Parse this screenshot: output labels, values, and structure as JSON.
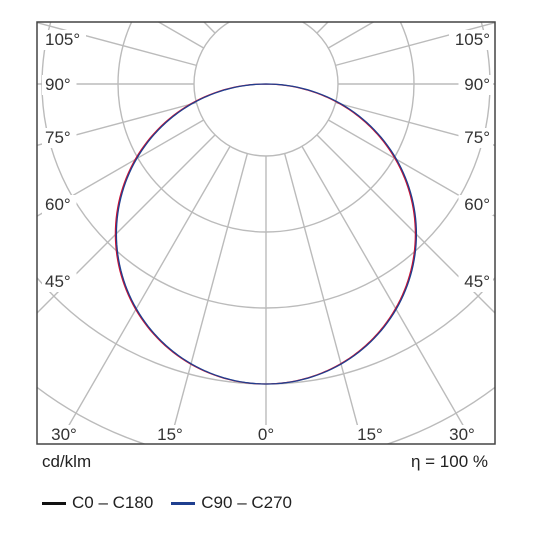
{
  "chart_data": {
    "type": "polar",
    "units_label": "cd/klm",
    "efficiency_label": "η = 100 %",
    "angle_labels_left": [
      "105°",
      "90°",
      "75°",
      "60°",
      "45°"
    ],
    "angle_labels_right": [
      "105°",
      "90°",
      "75°",
      "60°",
      "45°"
    ],
    "bottom_labels": [
      "30°",
      "15°",
      "0°",
      "15°",
      "30°"
    ],
    "label_angles": [
      105,
      90,
      75,
      60,
      45
    ],
    "bottom_label_angles": [
      30,
      15,
      0,
      15,
      30
    ],
    "radial_tick_step_deg": 5,
    "series": [
      {
        "name": "C0 – C180",
        "color": "#cc1133",
        "shape": "lambertian",
        "peak": 1.0,
        "peak_angle_deg": 0
      },
      {
        "name": "C90 – C270",
        "color": "#1f3f8f",
        "shape": "lambertian",
        "peak": 1.0,
        "peak_angle_deg": 0
      }
    ],
    "legend": [
      {
        "name": "C0 – C180",
        "color": "#111111"
      },
      {
        "name": "C90 – C270",
        "color": "#1f3f8f"
      }
    ],
    "legend_placement": "bottom-left"
  }
}
